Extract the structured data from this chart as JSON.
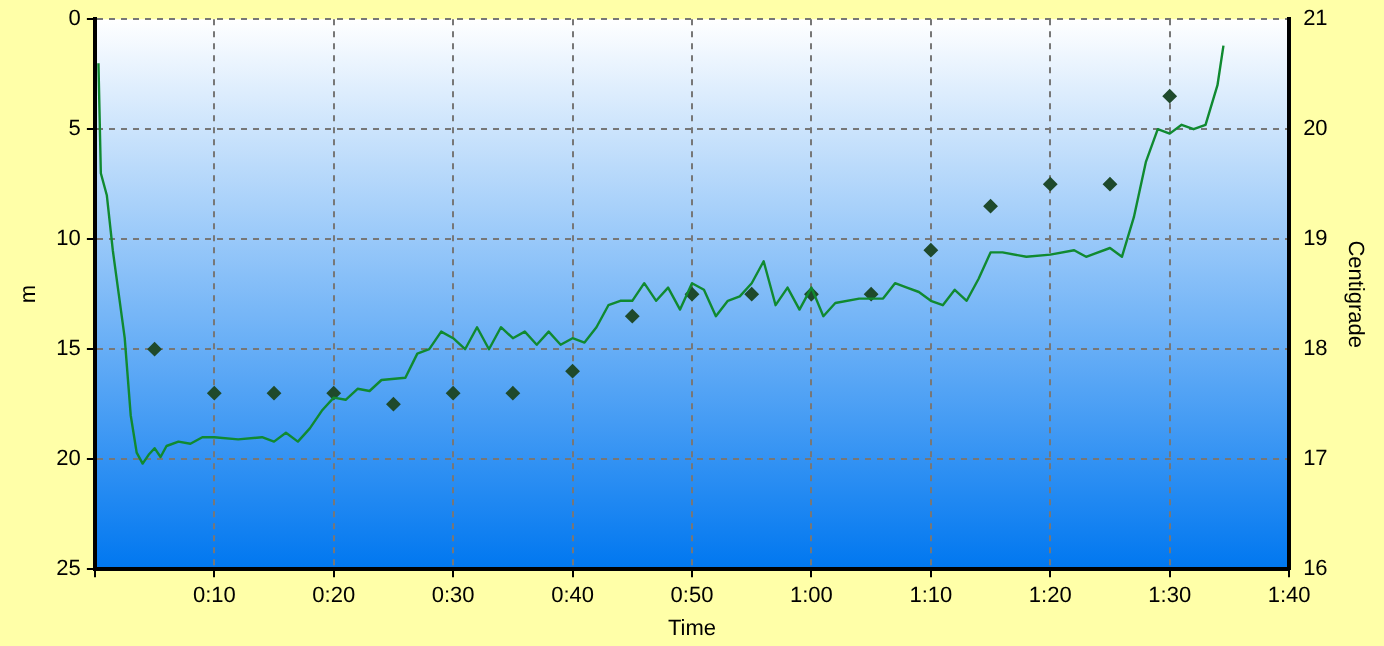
{
  "chart_data": {
    "type": "line",
    "xlabel": "Time",
    "ylabel": "m",
    "y2label": "Centigrade",
    "xlim": [
      0,
      100
    ],
    "xticks": [
      {
        "value": 0,
        "label": null
      },
      {
        "value": 10,
        "label": "0:10"
      },
      {
        "value": 20,
        "label": "0:20"
      },
      {
        "value": 30,
        "label": "0:30"
      },
      {
        "value": 40,
        "label": "0:40"
      },
      {
        "value": 50,
        "label": "0:50"
      },
      {
        "value": 60,
        "label": "1:00"
      },
      {
        "value": 70,
        "label": "1:10"
      },
      {
        "value": 80,
        "label": "1:20"
      },
      {
        "value": 90,
        "label": "1:30"
      },
      {
        "value": 100,
        "label": "1:40"
      }
    ],
    "ylim": [
      25,
      0
    ],
    "yticks": [
      0,
      5,
      10,
      15,
      20,
      25
    ],
    "y2lim": [
      16,
      21
    ],
    "y2ticks": [
      16,
      17,
      18,
      19,
      20,
      21
    ],
    "grid": true,
    "legend": false,
    "series": [
      {
        "color": "#108a30",
        "marker": "none",
        "x": [
          0.3,
          0.5,
          1,
          1.5,
          2,
          2.5,
          3,
          3.5,
          4,
          4.5,
          5,
          5.5,
          6,
          7,
          8,
          9,
          10,
          12,
          14,
          15,
          16,
          17,
          18,
          19,
          20,
          21,
          22,
          23,
          24,
          26,
          27,
          28,
          29,
          30,
          31,
          32,
          33,
          34,
          35,
          36,
          37,
          38,
          39,
          40,
          41,
          42,
          43,
          44,
          45,
          46,
          47,
          48,
          49,
          50,
          51,
          52,
          53,
          54,
          55,
          56,
          57,
          58,
          59,
          60,
          61,
          62,
          64,
          66,
          67,
          68,
          69,
          70,
          71,
          72,
          73,
          74,
          75,
          76,
          78,
          80,
          82,
          83,
          85,
          86,
          87,
          88,
          89,
          90,
          91,
          92,
          93,
          94,
          94.5
        ],
        "values": [
          2,
          7,
          8,
          10.5,
          12.5,
          14.5,
          18,
          19.7,
          20.2,
          19.8,
          19.5,
          19.9,
          19.4,
          19.2,
          19.3,
          19,
          19,
          19.1,
          19,
          19.2,
          18.8,
          19.2,
          18.6,
          17.8,
          17.2,
          17.3,
          16.8,
          16.9,
          16.4,
          16.3,
          15.2,
          15,
          14.2,
          14.5,
          15,
          14,
          15,
          14,
          14.5,
          14.2,
          14.8,
          14.2,
          14.8,
          14.5,
          14.7,
          14,
          13,
          12.8,
          12.8,
          12,
          12.8,
          12.2,
          13.2,
          12,
          12.3,
          13.5,
          12.8,
          12.6,
          12,
          11,
          13,
          12.2,
          13.2,
          12.2,
          13.5,
          12.9,
          12.7,
          12.7,
          12,
          12.2,
          12.4,
          12.8,
          13,
          12.3,
          12.8,
          11.8,
          10.6,
          10.6,
          10.8,
          10.7,
          10.5,
          10.8,
          10.4,
          10.8,
          9,
          6.5,
          5,
          5.2,
          4.8,
          5,
          4.8,
          3,
          1.2
        ]
      },
      {
        "type": "scatter",
        "axis": "y2",
        "color": "#1f4a2c",
        "marker": "diamond",
        "x": [
          5,
          10,
          15,
          20,
          25,
          30,
          35,
          40,
          45,
          50,
          55,
          60,
          65,
          70,
          75,
          80,
          85,
          90
        ],
        "values": [
          18,
          17.6,
          17.6,
          17.6,
          17.5,
          17.6,
          17.6,
          17.8,
          18.3,
          18.5,
          18.5,
          18.5,
          18.5,
          18.9,
          19.3,
          19.5,
          19.5,
          20.3
        ]
      }
    ]
  }
}
